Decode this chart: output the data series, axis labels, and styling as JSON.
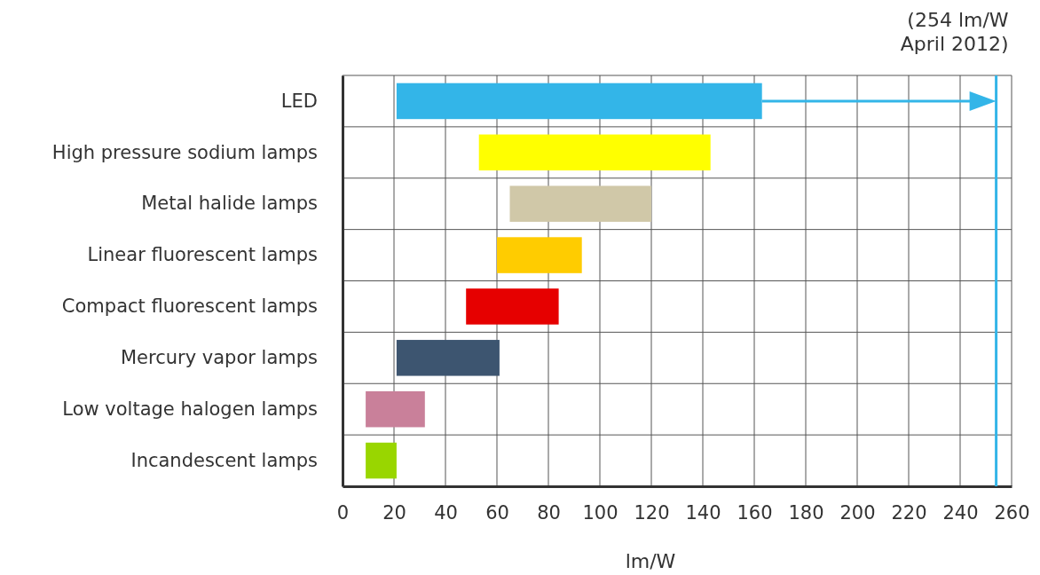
{
  "chart_data": {
    "type": "bar",
    "orientation": "horizontal",
    "xlabel": "lm/W",
    "categories": [
      "LED",
      "High pressure  sodium lamps",
      "Metal halide lamps",
      "Linear fluorescent lamps",
      "Compact fluorescent lamps",
      "Mercury vapor lamps",
      "Low voltage halogen lamps",
      "Incandescent lamps"
    ],
    "base": [
      21,
      53,
      65,
      60,
      48,
      21,
      9,
      9
    ],
    "values": [
      142,
      90,
      55,
      33,
      36,
      40,
      23,
      12
    ],
    "colors": [
      "#33b5e8",
      "#ffff00",
      "#d0c8a8",
      "#ffcc00",
      "#e60000",
      "#3d5570",
      "#c9809a",
      "#99d600"
    ],
    "xlim": [
      0,
      260
    ],
    "xticks": [
      0,
      20,
      40,
      60,
      80,
      100,
      120,
      140,
      160,
      180,
      200,
      220,
      240,
      260
    ],
    "grid": true,
    "ref_lines": [
      {
        "axis": "x",
        "value": 254,
        "label": "(254 lm/W\nApril 2012)",
        "color": "#33b5e8"
      }
    ]
  }
}
